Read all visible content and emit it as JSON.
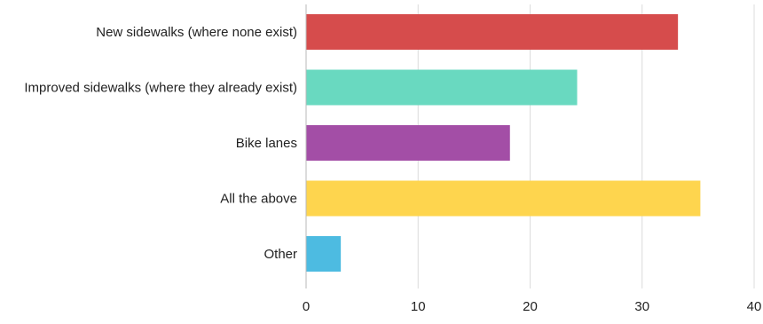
{
  "chart_data": {
    "type": "bar",
    "orientation": "horizontal",
    "categories": [
      "New sidewalks (where none exist)",
      "Improved sidewalks (where they already exist)",
      "Bike lanes",
      "All the above",
      "Other"
    ],
    "values": [
      33.2,
      24.2,
      18.2,
      35.2,
      3.1
    ],
    "colors": [
      "#d64c4c",
      "#69d9c0",
      "#a34ea6",
      "#fed54e",
      "#4dbbe1"
    ],
    "xlim": [
      0,
      40
    ],
    "xticks": [
      0,
      10,
      20,
      30,
      40
    ],
    "grid": true,
    "legend": "none",
    "title": "",
    "xlabel": "",
    "ylabel": ""
  }
}
